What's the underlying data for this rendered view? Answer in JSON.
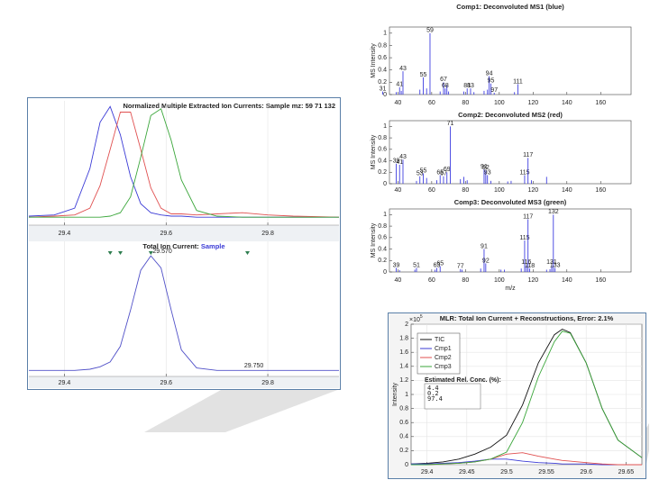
{
  "chart_data": [
    {
      "type": "line",
      "title": "Normalized Multiple Extracted Ion Currents: Sample mz: 59 71 132",
      "x": [
        29.33,
        29.38,
        29.42,
        29.45,
        29.47,
        29.49,
        29.51,
        29.53,
        29.55,
        29.57,
        29.59,
        29.61,
        29.63,
        29.66,
        29.7,
        29.75,
        29.8,
        29.85,
        29.94
      ],
      "series": [
        {
          "color": "#3b3bd6",
          "values": [
            0.03,
            0.04,
            0.1,
            0.45,
            0.86,
            1.0,
            0.75,
            0.38,
            0.14,
            0.06,
            0.04,
            0.03,
            0.03,
            0.02,
            0.02,
            0.02,
            0.02,
            0.02,
            0.02
          ]
        },
        {
          "color": "#e05050",
          "values": [
            0.02,
            0.03,
            0.04,
            0.1,
            0.3,
            0.62,
            0.95,
            0.95,
            0.62,
            0.28,
            0.1,
            0.05,
            0.05,
            0.04,
            0.05,
            0.06,
            0.04,
            0.03,
            0.02
          ]
        },
        {
          "color": "#3aa63a",
          "values": [
            0.02,
            0.02,
            0.02,
            0.02,
            0.02,
            0.03,
            0.06,
            0.2,
            0.55,
            0.92,
            0.98,
            0.7,
            0.35,
            0.08,
            0.03,
            0.02,
            0.02,
            0.02,
            0.02
          ]
        }
      ],
      "xlim": [
        29.33,
        29.94
      ],
      "ylim": [
        -0.05,
        1.05
      ],
      "xticks": [
        29.4,
        29.6,
        29.8
      ],
      "grid": true
    },
    {
      "type": "line",
      "title": "Total Ion Current:",
      "title_highlight": "Sample",
      "x": [
        29.33,
        29.38,
        29.42,
        29.45,
        29.47,
        29.49,
        29.51,
        29.53,
        29.55,
        29.57,
        29.59,
        29.61,
        29.63,
        29.66,
        29.7,
        29.75,
        29.8,
        29.85,
        29.94
      ],
      "series": [
        {
          "color": "#5050c8",
          "values": [
            0.05,
            0.05,
            0.05,
            0.06,
            0.08,
            0.12,
            0.25,
            0.55,
            0.88,
            1.0,
            0.9,
            0.55,
            0.22,
            0.07,
            0.05,
            0.05,
            0.05,
            0.05,
            0.05
          ]
        }
      ],
      "annotations": [
        {
          "x": 29.57,
          "y": 1.0,
          "text": "29.570"
        },
        {
          "x": 29.75,
          "y": 0.05,
          "text": "29.750"
        }
      ],
      "markers": [
        29.49,
        29.51,
        29.57,
        29.76
      ],
      "marker_color": "#2e7d4f",
      "xlim": [
        29.33,
        29.94
      ],
      "ylim": [
        0,
        1.12
      ],
      "xticks": [
        29.4,
        29.6,
        29.8
      ],
      "grid": true
    },
    {
      "type": "stem",
      "title": "Comp1: Deconvoluted MS1 (blue)",
      "ylabel": "MS Intensity",
      "peaks": {
        "x": [
          31,
          41,
          43,
          55,
          59,
          67,
          68,
          81,
          83,
          94,
          95,
          97,
          111
        ],
        "values": [
          0.05,
          0.12,
          0.38,
          0.28,
          1.0,
          0.2,
          0.1,
          0.1,
          0.1,
          0.3,
          0.18,
          0.03,
          0.17
        ]
      },
      "minor_peaks": {
        "x": [
          39,
          42,
          53,
          57,
          65,
          69,
          70,
          79,
          85,
          91,
          93,
          109
        ],
        "values": [
          0.04,
          0.06,
          0.08,
          0.1,
          0.05,
          0.15,
          0.05,
          0.05,
          0.04,
          0.06,
          0.08,
          0.04
        ]
      },
      "color": "#4040e0",
      "label_color": "#e03030",
      "xlim": [
        35,
        178
      ],
      "ylim": [
        0,
        1.1
      ],
      "xticks": [
        40,
        60,
        80,
        100,
        120,
        140,
        160
      ],
      "yticks": [
        0,
        0.2,
        0.4,
        0.6,
        0.8,
        1
      ]
    },
    {
      "type": "stem",
      "title": "Comp2: Deconvoluted MS2 (red)",
      "ylabel": "MS Intensity",
      "peaks": {
        "x": [
          39,
          41,
          43,
          53,
          55,
          65,
          67,
          69,
          71,
          91,
          92,
          93,
          115,
          117
        ],
        "values": [
          0.35,
          0.33,
          0.42,
          0.13,
          0.18,
          0.15,
          0.13,
          0.2,
          1.0,
          0.25,
          0.23,
          0.15,
          0.15,
          0.45
        ]
      },
      "minor_peaks": {
        "x": [
          51,
          57,
          63,
          77,
          79,
          81,
          95,
          105,
          107,
          119,
          128
        ],
        "values": [
          0.05,
          0.1,
          0.06,
          0.08,
          0.12,
          0.06,
          0.05,
          0.04,
          0.05,
          0.06,
          0.12
        ]
      },
      "color": "#4040e0",
      "label_color": "#e03030",
      "xlim": [
        35,
        178
      ],
      "ylim": [
        0,
        1.1
      ],
      "xticks": [
        40,
        60,
        80,
        100,
        120,
        140,
        160
      ],
      "yticks": [
        0,
        0.2,
        0.4,
        0.6,
        0.8,
        1
      ]
    },
    {
      "type": "stem",
      "title": "Comp3: Deconvoluted MS3 (green)",
      "ylabel": "MS Intensity",
      "xlabel": "m/z",
      "peaks": {
        "x": [
          39,
          51,
          63,
          65,
          77,
          91,
          92,
          115,
          116,
          117,
          118,
          131,
          132,
          133
        ],
        "values": [
          0.07,
          0.07,
          0.07,
          0.1,
          0.05,
          0.4,
          0.15,
          0.55,
          0.12,
          0.92,
          0.06,
          0.12,
          1.0,
          0.07
        ]
      },
      "minor_peaks": {
        "x": [
          41,
          50,
          62,
          78,
          89,
          101,
          103,
          113,
          128,
          130
        ],
        "values": [
          0.03,
          0.04,
          0.04,
          0.04,
          0.06,
          0.04,
          0.04,
          0.06,
          0.04,
          0.05
        ]
      },
      "color": "#4040e0",
      "label_color": "#e03030",
      "xlim": [
        35,
        178
      ],
      "ylim": [
        0,
        1.1
      ],
      "xticks": [
        40,
        60,
        80,
        100,
        120,
        140,
        160
      ],
      "yticks": [
        0,
        0.2,
        0.4,
        0.6,
        0.8,
        1
      ]
    },
    {
      "type": "line",
      "title": "MLR: Total Ion Current + Reconstructions, Error: 2.1%",
      "ylabel": "Intensity",
      "y_multiplier": "10",
      "y_exponent": "5",
      "x": [
        29.38,
        29.4,
        29.42,
        29.44,
        29.46,
        29.48,
        29.5,
        29.52,
        29.54,
        29.56,
        29.57,
        29.58,
        29.6,
        29.62,
        29.64,
        29.67
      ],
      "series": [
        {
          "name": "TIC",
          "color": "#111111",
          "values": [
            0.01,
            0.02,
            0.04,
            0.08,
            0.15,
            0.25,
            0.42,
            0.85,
            1.45,
            1.85,
            1.93,
            1.88,
            1.45,
            0.8,
            0.35,
            0.1
          ]
        },
        {
          "name": "Cmp1",
          "color": "#3b3bd6",
          "values": [
            0.01,
            0.01,
            0.02,
            0.03,
            0.05,
            0.08,
            0.08,
            0.05,
            0.03,
            0.02,
            0.01,
            0.01,
            0.01,
            0,
            0,
            0
          ]
        },
        {
          "name": "Cmp2",
          "color": "#e05050",
          "values": [
            0,
            0,
            0.01,
            0.02,
            0.04,
            0.08,
            0.15,
            0.17,
            0.12,
            0.08,
            0.06,
            0.05,
            0.03,
            0.01,
            0,
            0
          ]
        },
        {
          "name": "Cmp3",
          "color": "#3aa63a",
          "values": [
            0,
            0,
            0.01,
            0.02,
            0.04,
            0.08,
            0.18,
            0.6,
            1.25,
            1.75,
            1.9,
            1.87,
            1.45,
            0.8,
            0.35,
            0.1
          ]
        }
      ],
      "conc_title": "Estimated Rel. Conc. (%):",
      "conc_values": [
        "4.4",
        "0.2",
        "97.4"
      ],
      "xlim": [
        29.38,
        29.67
      ],
      "ylim": [
        0,
        2
      ],
      "xticks": [
        29.4,
        29.45,
        29.5,
        29.55,
        29.6,
        29.65
      ],
      "yticks": [
        0,
        0.2,
        0.4,
        0.6,
        0.8,
        1,
        1.2,
        1.4,
        1.6,
        1.8,
        2
      ],
      "grid": true,
      "legend": "upper left"
    }
  ]
}
